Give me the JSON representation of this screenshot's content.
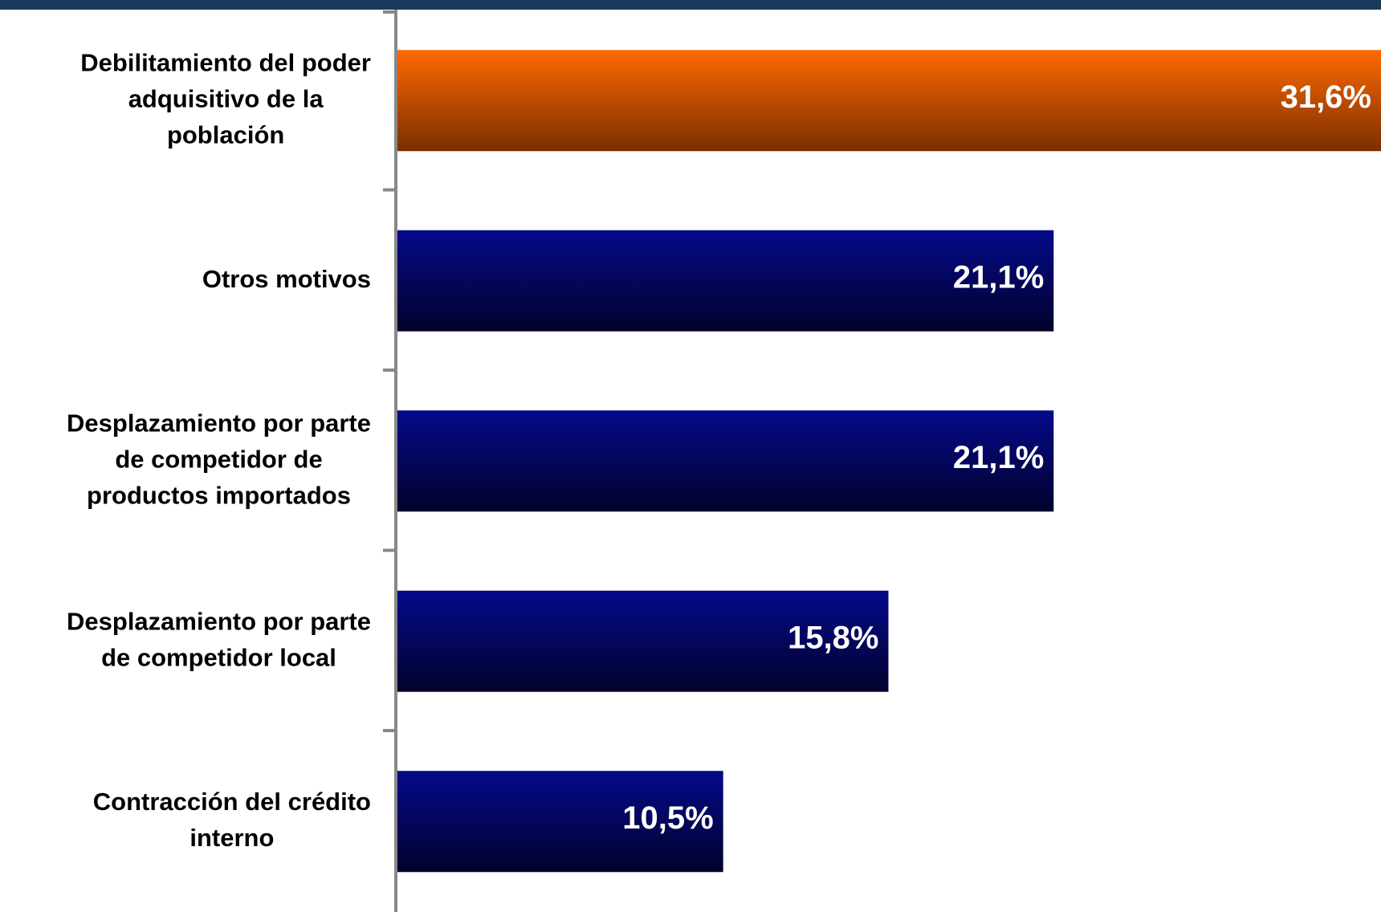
{
  "colors": {
    "highlight_top": "#ff6a00",
    "highlight_bottom": "#7a2e00",
    "bar_top": "#050a8a",
    "bar_bottom": "#02022c",
    "axis": "#888888",
    "frame_band": "#1a3a5a"
  },
  "chart_data": {
    "type": "bar",
    "orientation": "horizontal",
    "title": "",
    "xlabel": "",
    "ylabel": "",
    "xlim": [
      0,
      31.6
    ],
    "grid": false,
    "legend": "none",
    "categories": [
      [
        "Debilitamiento del poder",
        "adquisitivo de la",
        "población"
      ],
      [
        "Otros motivos"
      ],
      [
        "Desplazamiento por parte",
        "de competidor de",
        "productos importados"
      ],
      [
        "Desplazamiento por parte",
        "de competidor local"
      ],
      [
        "Contracción del crédito",
        "interno"
      ]
    ],
    "values": [
      31.6,
      21.1,
      21.1,
      15.8,
      10.5
    ],
    "value_labels": [
      "31,6%",
      "21,1%",
      "21,1%",
      "15,8%",
      "10,5%"
    ],
    "highlight_index": 0
  }
}
